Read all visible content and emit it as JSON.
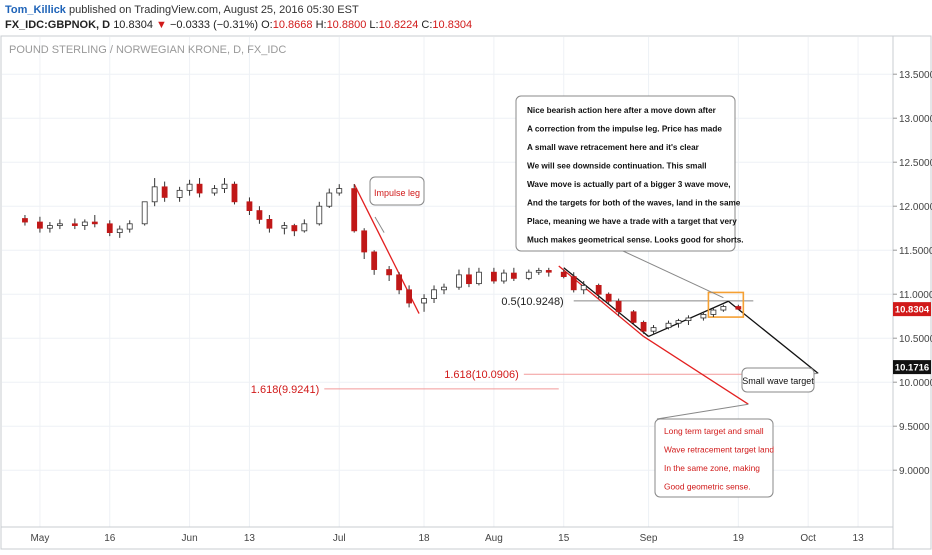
{
  "header": {
    "author": "Tom_Killick",
    "published_text": "published on TradingView.com, August 25, 2016 05:30 EST",
    "symbol": "FX_IDC:GBPNOK, D",
    "last": "10.8304",
    "change": "−0.0333 (−0.31%)",
    "o_label": "O:",
    "o_value": "10.8668",
    "h_label": "H:",
    "h_value": "10.8800",
    "l_label": "L:",
    "l_value": "10.8224",
    "c_label": "C:",
    "c_value": "10.8304"
  },
  "chart_data": {
    "type": "candlestick",
    "title": "POUND STERLING / NORWEGIAN KRONE, D, FX_IDC",
    "ylim": [
      8.4,
      13.9
    ],
    "y_ticks": [
      "13.5000",
      "13.0000",
      "12.5000",
      "12.0000",
      "11.5000",
      "11.0000",
      "10.5000",
      "10.0000",
      "9.5000",
      "9.0000"
    ],
    "y_tick_values": [
      13.5,
      13.0,
      12.5,
      12.0,
      11.5,
      11.0,
      10.5,
      10.0,
      9.5,
      9.0
    ],
    "x_ticks": [
      "May",
      "16",
      "Jun",
      "13",
      "Jul",
      "18",
      "Aug",
      "15",
      "Sep",
      "19",
      "Oct",
      "13"
    ],
    "x_tick_dates": [
      "2016-05-02",
      "2016-05-16",
      "2016-06-01",
      "2016-06-13",
      "2016-07-01",
      "2016-07-18",
      "2016-08-01",
      "2016-08-15",
      "2016-09-01",
      "2016-09-19",
      "2016-10-03",
      "2016-10-13"
    ],
    "price_labels": [
      {
        "text": "10.8304",
        "value": 10.8304,
        "color": "#d11a1a"
      },
      {
        "text": "10.1716",
        "value": 10.1716,
        "color": "#111111"
      }
    ],
    "candles": [
      {
        "date": "2016-04-29",
        "o": 11.86,
        "h": 11.9,
        "l": 11.78,
        "c": 11.82
      },
      {
        "date": "2016-05-02",
        "o": 11.82,
        "h": 11.88,
        "l": 11.7,
        "c": 11.75
      },
      {
        "date": "2016-05-04",
        "o": 11.75,
        "h": 11.82,
        "l": 11.7,
        "c": 11.78
      },
      {
        "date": "2016-05-06",
        "o": 11.78,
        "h": 11.85,
        "l": 11.74,
        "c": 11.8
      },
      {
        "date": "2016-05-09",
        "o": 11.8,
        "h": 11.86,
        "l": 11.74,
        "c": 11.78
      },
      {
        "date": "2016-05-11",
        "o": 11.78,
        "h": 11.85,
        "l": 11.73,
        "c": 11.82
      },
      {
        "date": "2016-05-13",
        "o": 11.82,
        "h": 11.9,
        "l": 11.76,
        "c": 11.8
      },
      {
        "date": "2016-05-16",
        "o": 11.8,
        "h": 11.84,
        "l": 11.66,
        "c": 11.7
      },
      {
        "date": "2016-05-18",
        "o": 11.7,
        "h": 11.78,
        "l": 11.64,
        "c": 11.74
      },
      {
        "date": "2016-05-20",
        "o": 11.74,
        "h": 11.84,
        "l": 11.7,
        "c": 11.8
      },
      {
        "date": "2016-05-23",
        "o": 11.8,
        "h": 12.05,
        "l": 11.78,
        "c": 12.05
      },
      {
        "date": "2016-05-25",
        "o": 12.05,
        "h": 12.32,
        "l": 12.0,
        "c": 12.22
      },
      {
        "date": "2016-05-27",
        "o": 12.22,
        "h": 12.28,
        "l": 12.05,
        "c": 12.1
      },
      {
        "date": "2016-05-30",
        "o": 12.1,
        "h": 12.22,
        "l": 12.05,
        "c": 12.18
      },
      {
        "date": "2016-06-01",
        "o": 12.18,
        "h": 12.3,
        "l": 12.12,
        "c": 12.25
      },
      {
        "date": "2016-06-03",
        "o": 12.25,
        "h": 12.32,
        "l": 12.1,
        "c": 12.15
      },
      {
        "date": "2016-06-06",
        "o": 12.15,
        "h": 12.24,
        "l": 12.12,
        "c": 12.2
      },
      {
        "date": "2016-06-08",
        "o": 12.2,
        "h": 12.32,
        "l": 12.15,
        "c": 12.25
      },
      {
        "date": "2016-06-10",
        "o": 12.25,
        "h": 12.28,
        "l": 12.02,
        "c": 12.05
      },
      {
        "date": "2016-06-13",
        "o": 12.05,
        "h": 12.1,
        "l": 11.9,
        "c": 11.95
      },
      {
        "date": "2016-06-15",
        "o": 11.95,
        "h": 12.0,
        "l": 11.8,
        "c": 11.85
      },
      {
        "date": "2016-06-17",
        "o": 11.85,
        "h": 11.9,
        "l": 11.7,
        "c": 11.75
      },
      {
        "date": "2016-06-20",
        "o": 11.75,
        "h": 11.82,
        "l": 11.68,
        "c": 11.78
      },
      {
        "date": "2016-06-22",
        "o": 11.78,
        "h": 11.8,
        "l": 11.66,
        "c": 11.72
      },
      {
        "date": "2016-06-24",
        "o": 11.72,
        "h": 11.85,
        "l": 11.7,
        "c": 11.8
      },
      {
        "date": "2016-06-27",
        "o": 11.8,
        "h": 12.05,
        "l": 11.78,
        "c": 12.0
      },
      {
        "date": "2016-06-29",
        "o": 12.0,
        "h": 12.2,
        "l": 11.98,
        "c": 12.15
      },
      {
        "date": "2016-07-01",
        "o": 12.15,
        "h": 12.25,
        "l": 12.12,
        "c": 12.2
      },
      {
        "date": "2016-07-04",
        "o": 12.2,
        "h": 12.25,
        "l": 11.7,
        "c": 11.72
      },
      {
        "date": "2016-07-06",
        "o": 11.72,
        "h": 11.75,
        "l": 11.4,
        "c": 11.48
      },
      {
        "date": "2016-07-08",
        "o": 11.48,
        "h": 11.5,
        "l": 11.22,
        "c": 11.28
      },
      {
        "date": "2016-07-11",
        "o": 11.28,
        "h": 11.32,
        "l": 11.15,
        "c": 11.22
      },
      {
        "date": "2016-07-13",
        "o": 11.22,
        "h": 11.25,
        "l": 11.0,
        "c": 11.05
      },
      {
        "date": "2016-07-15",
        "o": 11.05,
        "h": 11.1,
        "l": 10.85,
        "c": 10.9
      },
      {
        "date": "2016-07-18",
        "o": 10.9,
        "h": 11.0,
        "l": 10.8,
        "c": 10.95
      },
      {
        "date": "2016-07-20",
        "o": 10.95,
        "h": 11.1,
        "l": 10.9,
        "c": 11.05
      },
      {
        "date": "2016-07-22",
        "o": 11.05,
        "h": 11.12,
        "l": 11.0,
        "c": 11.08
      },
      {
        "date": "2016-07-25",
        "o": 11.08,
        "h": 11.28,
        "l": 11.05,
        "c": 11.22
      },
      {
        "date": "2016-07-27",
        "o": 11.22,
        "h": 11.3,
        "l": 11.08,
        "c": 11.12
      },
      {
        "date": "2016-07-29",
        "o": 11.12,
        "h": 11.3,
        "l": 11.1,
        "c": 11.25
      },
      {
        "date": "2016-08-01",
        "o": 11.25,
        "h": 11.3,
        "l": 11.12,
        "c": 11.15
      },
      {
        "date": "2016-08-03",
        "o": 11.15,
        "h": 11.28,
        "l": 11.12,
        "c": 11.24
      },
      {
        "date": "2016-08-05",
        "o": 11.24,
        "h": 11.3,
        "l": 11.15,
        "c": 11.18
      },
      {
        "date": "2016-08-08",
        "o": 11.18,
        "h": 11.28,
        "l": 11.16,
        "c": 11.25
      },
      {
        "date": "2016-08-10",
        "o": 11.25,
        "h": 11.3,
        "l": 11.22,
        "c": 11.27
      },
      {
        "date": "2016-08-12",
        "o": 11.27,
        "h": 11.3,
        "l": 11.2,
        "c": 11.25
      },
      {
        "date": "2016-08-15",
        "o": 11.25,
        "h": 11.28,
        "l": 11.18,
        "c": 11.2
      },
      {
        "date": "2016-08-17",
        "o": 11.2,
        "h": 11.25,
        "l": 11.02,
        "c": 11.05
      },
      {
        "date": "2016-08-19",
        "o": 11.05,
        "h": 11.15,
        "l": 11.0,
        "c": 11.1
      },
      {
        "date": "2016-08-22",
        "o": 11.1,
        "h": 11.12,
        "l": 10.95,
        "c": 11.0
      },
      {
        "date": "2016-08-24",
        "o": 11.0,
        "h": 11.02,
        "l": 10.88,
        "c": 10.92
      },
      {
        "date": "2016-08-26",
        "o": 10.92,
        "h": 10.95,
        "l": 10.75,
        "c": 10.8
      },
      {
        "date": "2016-08-29",
        "o": 10.8,
        "h": 10.82,
        "l": 10.65,
        "c": 10.68
      },
      {
        "date": "2016-08-31",
        "o": 10.68,
        "h": 10.7,
        "l": 10.55,
        "c": 10.58
      },
      {
        "date": "2016-09-02",
        "o": 10.58,
        "h": 10.65,
        "l": 10.54,
        "c": 10.62
      },
      {
        "date": "2016-09-05",
        "o": 10.62,
        "h": 10.7,
        "l": 10.6,
        "c": 10.67
      },
      {
        "date": "2016-09-07",
        "o": 10.67,
        "h": 10.72,
        "l": 10.62,
        "c": 10.7
      },
      {
        "date": "2016-09-09",
        "o": 10.7,
        "h": 10.76,
        "l": 10.65,
        "c": 10.73
      },
      {
        "date": "2016-09-12",
        "o": 10.73,
        "h": 10.8,
        "l": 10.7,
        "c": 10.77
      },
      {
        "date": "2016-09-14",
        "o": 10.77,
        "h": 10.85,
        "l": 10.74,
        "c": 10.82
      },
      {
        "date": "2016-09-16",
        "o": 10.82,
        "h": 10.88,
        "l": 10.8,
        "c": 10.86
      },
      {
        "date": "2016-09-19",
        "o": 10.86,
        "h": 10.88,
        "l": 10.82,
        "c": 10.83
      }
    ],
    "fib_levels": [
      {
        "label": "0.5(10.9248)",
        "value": 10.9248,
        "color": "#222222"
      },
      {
        "label": "1.618(10.0906)",
        "value": 10.0906,
        "color": "#d11a1a"
      },
      {
        "label": "1.618(9.9241)",
        "value": 9.9241,
        "color": "#d11a1a"
      }
    ],
    "callouts": {
      "impulse": "Impulse leg",
      "main_lines": [
        "Nice bearish action here after a move down after",
        "A correction from the impulse leg. Price has made",
        "A small wave retracement here and it's clear",
        "We will see downside continuation. This small",
        "Wave move is actually part of a bigger 3 wave move,",
        "And the targets for both of the waves, land in the same",
        "Place, meaning we have a trade with a target that very",
        "Much makes geometrical sense. Looks good for shorts."
      ],
      "small_target": "Small wave target",
      "long_term_lines": [
        "Long term target and small",
        "Wave retracement target land",
        "In the same zone, making",
        "Good geometric sense."
      ]
    },
    "colors": {
      "up": "#ffffff",
      "down": "#c01818",
      "wick": "#333333",
      "red_line": "#e32020",
      "black_line": "#111111",
      "box": "#f5a032",
      "grid": "#eef1f5"
    }
  }
}
